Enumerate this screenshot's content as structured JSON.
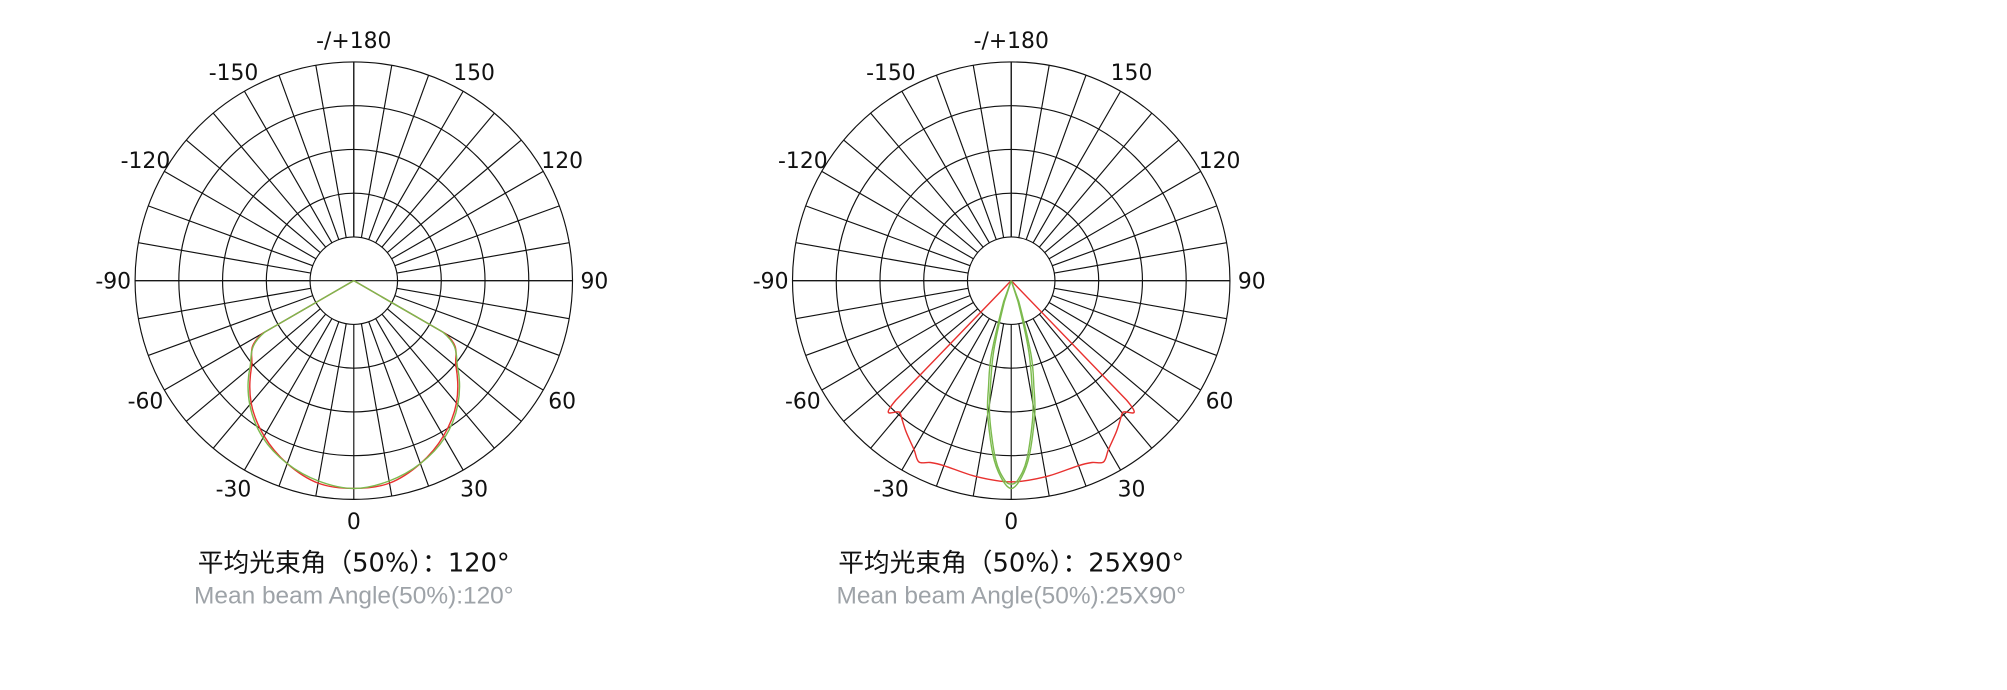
{
  "colors": {
    "grid": "#111111",
    "red": "#e8312f",
    "green": "#7cba4e"
  },
  "chart_data": [
    {
      "type": "polar",
      "angle_labels": [
        {
          "angle": 0,
          "text": "0"
        },
        {
          "angle": 30,
          "text": "30"
        },
        {
          "angle": 60,
          "text": "60"
        },
        {
          "angle": 90,
          "text": "90"
        },
        {
          "angle": 120,
          "text": "120"
        },
        {
          "angle": 150,
          "text": "150"
        },
        {
          "angle": 180,
          "text": "-/+180"
        },
        {
          "angle": -150,
          "text": "-150"
        },
        {
          "angle": -120,
          "text": "-120"
        },
        {
          "angle": -90,
          "text": "-90"
        },
        {
          "angle": -60,
          "text": "-60"
        },
        {
          "angle": -30,
          "text": "-30"
        }
      ],
      "rings": 5,
      "spoke_step_deg": 10,
      "title": "平均光束角（50%）：120°",
      "subtitle": "Mean beam Angle(50%):120°",
      "series": [
        {
          "color": "red",
          "angles": [
            -60,
            -50,
            -40,
            -30,
            -20,
            -10,
            0,
            10,
            20,
            30,
            40,
            50,
            60
          ],
          "values": [
            0.48,
            0.61,
            0.73,
            0.82,
            0.89,
            0.94,
            0.95,
            0.94,
            0.89,
            0.82,
            0.73,
            0.61,
            0.48
          ]
        },
        {
          "color": "green",
          "angles": [
            -60,
            -50,
            -40,
            -30,
            -20,
            -10,
            0,
            10,
            20,
            30,
            40,
            50,
            60
          ],
          "values": [
            0.47,
            0.62,
            0.74,
            0.83,
            0.89,
            0.93,
            0.95,
            0.93,
            0.89,
            0.83,
            0.74,
            0.62,
            0.47
          ]
        }
      ]
    },
    {
      "type": "polar",
      "angle_labels": [
        {
          "angle": 0,
          "text": "0"
        },
        {
          "angle": 30,
          "text": "30"
        },
        {
          "angle": 60,
          "text": "60"
        },
        {
          "angle": 90,
          "text": "90"
        },
        {
          "angle": 120,
          "text": "120"
        },
        {
          "angle": 150,
          "text": "150"
        },
        {
          "angle": 180,
          "text": "-/+180"
        },
        {
          "angle": -150,
          "text": "-150"
        },
        {
          "angle": -120,
          "text": "-120"
        },
        {
          "angle": -90,
          "text": "-90"
        },
        {
          "angle": -60,
          "text": "-60"
        },
        {
          "angle": -30,
          "text": "-30"
        }
      ],
      "rings": 5,
      "spoke_step_deg": 10,
      "title": "平均光束角（50%）：25X90°",
      "subtitle": "Mean beam Angle(50%):25X90°",
      "series": [
        {
          "color": "red",
          "angles": [
            -44,
            -40,
            -35,
            -30,
            -27,
            -24,
            -20,
            -10,
            0,
            10,
            20,
            24,
            27,
            30,
            35,
            40,
            44
          ],
          "values": [
            0.76,
            0.79,
            0.84,
            0.89,
            0.93,
            0.91,
            0.9,
            0.91,
            0.92,
            0.91,
            0.9,
            0.91,
            0.93,
            0.89,
            0.84,
            0.79,
            0.76
          ]
        },
        {
          "color": "green",
          "angles": [
            -20,
            -15,
            -12,
            -10,
            -6,
            -3,
            0,
            3,
            6,
            10,
            12,
            15,
            20
          ],
          "values": [
            0.1,
            0.35,
            0.5,
            0.62,
            0.8,
            0.9,
            0.95,
            0.9,
            0.8,
            0.62,
            0.5,
            0.35,
            0.1
          ]
        },
        {
          "color": "green",
          "angles": [
            -18,
            -14,
            -11,
            -9,
            -5,
            -2,
            0,
            2,
            5,
            9,
            11,
            14,
            18
          ],
          "values": [
            0.1,
            0.33,
            0.5,
            0.63,
            0.82,
            0.91,
            0.93,
            0.91,
            0.82,
            0.63,
            0.5,
            0.33,
            0.1
          ]
        }
      ]
    }
  ]
}
